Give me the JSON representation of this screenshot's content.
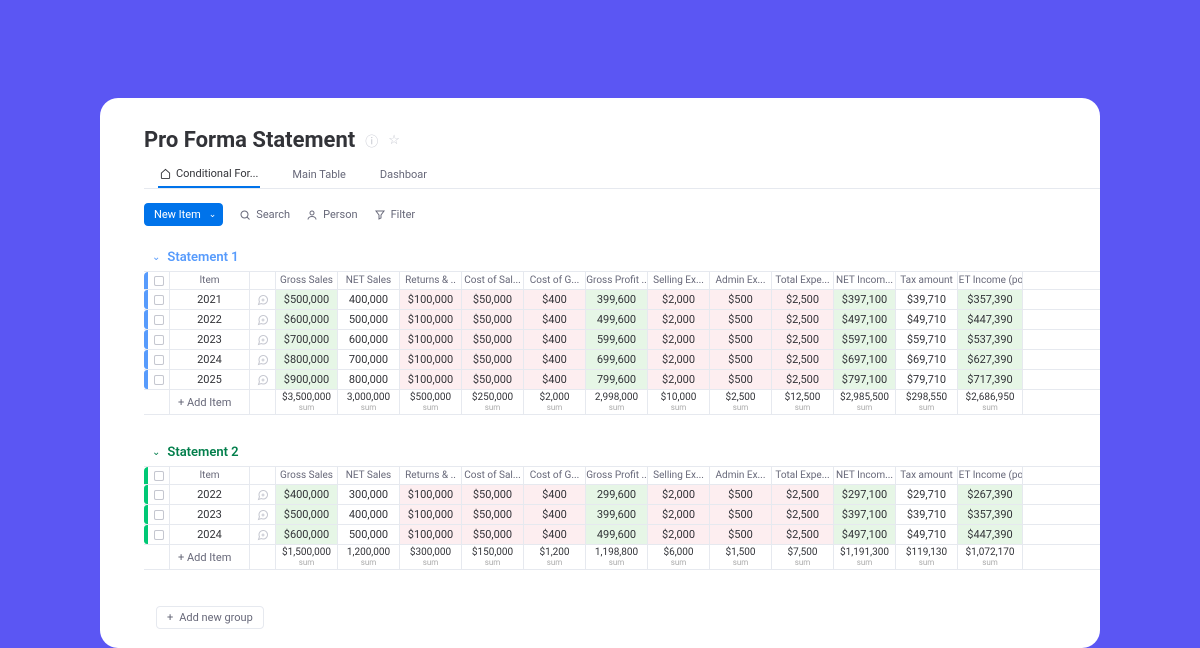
{
  "colors": {
    "background": "#5b56f3",
    "panel": "#ffffff",
    "primary": "#0073ea",
    "text": "#323338",
    "muted": "#676879",
    "border": "#e6e9ef",
    "group1_accent": "#579bfc",
    "group2_accent": "#00c875",
    "shade_green": "#e6f6e6",
    "shade_pink": "#fdeef0"
  },
  "title": "Pro Forma Statement",
  "tabs": {
    "t0": "Conditional For...",
    "t1": "Main Table",
    "t2": "Dashboar"
  },
  "toolbar": {
    "new_item": "New Item",
    "search": "Search",
    "person": "Person",
    "filter": "Filter"
  },
  "columns": {
    "item": "Item",
    "c0": "Gross Sales",
    "c1": "NET Sales",
    "c2": "Returns & ..",
    "c3": "Cost of Sal...",
    "c4": "Cost of G...",
    "c5": "Gross Profit ..",
    "c6": "Selling Ex...",
    "c7": "Admin Ex...",
    "c8": "Total Expe...",
    "c9": "NET Incom...",
    "c10": "Tax amount",
    "c11": "NET Income (po.."
  },
  "column_shading": [
    "shade_green",
    "",
    "shade_pink",
    "shade_pink",
    "shade_pink",
    "shade_green",
    "shade_pink",
    "shade_pink",
    "shade_pink",
    "shade_green",
    "",
    "shade_green"
  ],
  "sum_label": "sum",
  "add_item": "+ Add Item",
  "add_group": "Add new group",
  "groups": {
    "g1": {
      "title": "Statement 1",
      "accent": "#579bfc",
      "title_color": "#579bfc",
      "rows": [
        {
          "item": "2021",
          "c0": "$500,000",
          "c1": "400,000",
          "c2": "$100,000",
          "c3": "$50,000",
          "c4": "$400",
          "c5": "399,600",
          "c6": "$2,000",
          "c7": "$500",
          "c8": "$2,500",
          "c9": "$397,100",
          "c10": "$39,710",
          "c11": "$357,390"
        },
        {
          "item": "2022",
          "c0": "$600,000",
          "c1": "500,000",
          "c2": "$100,000",
          "c3": "$50,000",
          "c4": "$400",
          "c5": "499,600",
          "c6": "$2,000",
          "c7": "$500",
          "c8": "$2,500",
          "c9": "$497,100",
          "c10": "$49,710",
          "c11": "$447,390"
        },
        {
          "item": "2023",
          "c0": "$700,000",
          "c1": "600,000",
          "c2": "$100,000",
          "c3": "$50,000",
          "c4": "$400",
          "c5": "599,600",
          "c6": "$2,000",
          "c7": "$500",
          "c8": "$2,500",
          "c9": "$597,100",
          "c10": "$59,710",
          "c11": "$537,390"
        },
        {
          "item": "2024",
          "c0": "$800,000",
          "c1": "700,000",
          "c2": "$100,000",
          "c3": "$50,000",
          "c4": "$400",
          "c5": "699,600",
          "c6": "$2,000",
          "c7": "$500",
          "c8": "$2,500",
          "c9": "$697,100",
          "c10": "$69,710",
          "c11": "$627,390"
        },
        {
          "item": "2025",
          "c0": "$900,000",
          "c1": "800,000",
          "c2": "$100,000",
          "c3": "$50,000",
          "c4": "$400",
          "c5": "799,600",
          "c6": "$2,000",
          "c7": "$500",
          "c8": "$2,500",
          "c9": "$797,100",
          "c10": "$79,710",
          "c11": "$717,390"
        }
      ],
      "sums": {
        "c0": "$3,500,000",
        "c1": "3,000,000",
        "c2": "$500,000",
        "c3": "$250,000",
        "c4": "$2,000",
        "c5": "2,998,000",
        "c6": "$10,000",
        "c7": "$2,500",
        "c8": "$12,500",
        "c9": "$2,985,500",
        "c10": "$298,550",
        "c11": "$2,686,950"
      }
    },
    "g2": {
      "title": "Statement 2",
      "accent": "#00c875",
      "title_color": "#037f4c",
      "rows": [
        {
          "item": "2022",
          "c0": "$400,000",
          "c1": "300,000",
          "c2": "$100,000",
          "c3": "$50,000",
          "c4": "$400",
          "c5": "299,600",
          "c6": "$2,000",
          "c7": "$500",
          "c8": "$2,500",
          "c9": "$297,100",
          "c10": "$29,710",
          "c11": "$267,390"
        },
        {
          "item": "2023",
          "c0": "$500,000",
          "c1": "400,000",
          "c2": "$100,000",
          "c3": "$50,000",
          "c4": "$400",
          "c5": "399,600",
          "c6": "$2,000",
          "c7": "$500",
          "c8": "$2,500",
          "c9": "$397,100",
          "c10": "$39,710",
          "c11": "$357,390"
        },
        {
          "item": "2024",
          "c0": "$600,000",
          "c1": "500,000",
          "c2": "$100,000",
          "c3": "$50,000",
          "c4": "$400",
          "c5": "499,600",
          "c6": "$2,000",
          "c7": "$500",
          "c8": "$2,500",
          "c9": "$497,100",
          "c10": "$49,710",
          "c11": "$447,390"
        }
      ],
      "sums": {
        "c0": "$1,500,000",
        "c1": "1,200,000",
        "c2": "$300,000",
        "c3": "$150,000",
        "c4": "$1,200",
        "c5": "1,198,800",
        "c6": "$6,000",
        "c7": "$1,500",
        "c8": "$7,500",
        "c9": "$1,191,300",
        "c10": "$119,130",
        "c11": "$1,072,170"
      }
    }
  }
}
